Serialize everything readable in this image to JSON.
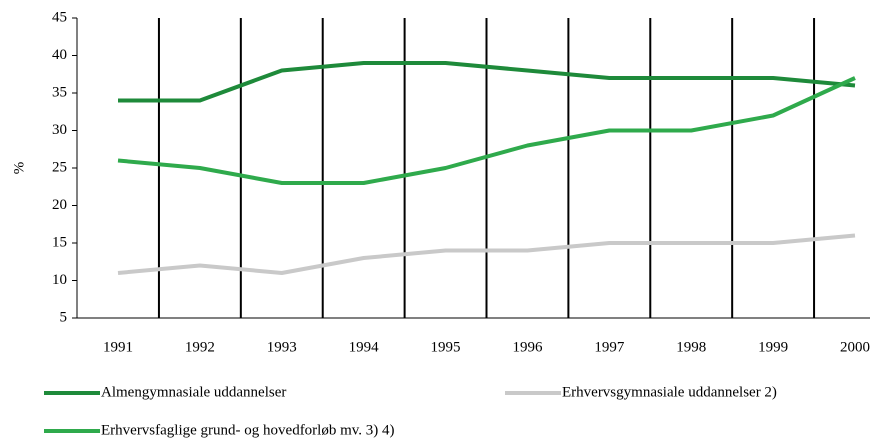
{
  "chart_data": {
    "type": "line",
    "y_label": "%",
    "categories": [
      "1991",
      "1992",
      "1993",
      "1994",
      "1995",
      "1996",
      "1997",
      "1998",
      "1999",
      "2000"
    ],
    "series": [
      {
        "name": "Almengymnasiale uddannelser",
        "color": "#1e8a3a",
        "values": [
          34,
          34,
          38,
          39,
          39,
          38,
          37,
          37,
          37,
          36
        ]
      },
      {
        "name": "Erhvervsgymnasiale uddannelser 2)",
        "color": "#c9c9c9",
        "values": [
          11,
          12,
          11,
          13,
          14,
          14,
          15,
          15,
          15,
          16
        ]
      },
      {
        "name": "Erhvervsfaglige grund- og hovedforløb mv. 3) 4)",
        "color": "#2faa4c",
        "values": [
          26,
          25,
          23,
          23,
          25,
          28,
          30,
          30,
          32,
          37
        ]
      }
    ],
    "ylim": [
      5,
      45
    ],
    "yticks": [
      5,
      10,
      15,
      20,
      25,
      30,
      35,
      40,
      45
    ],
    "grid": true,
    "legend": "bottom"
  }
}
